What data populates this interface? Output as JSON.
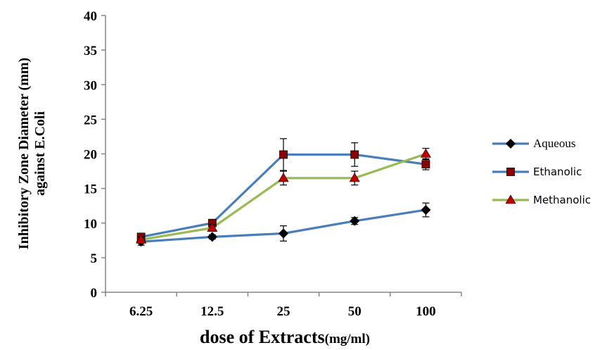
{
  "chart_data": {
    "type": "line",
    "categories": [
      "6.25",
      "12.5",
      "25",
      "50",
      "100"
    ],
    "ylim": [
      0,
      40
    ],
    "yticks": [
      0,
      5,
      10,
      15,
      20,
      25,
      30,
      35,
      40
    ],
    "ylabel_line1": "Inhibitory Zone Diameter (mm)",
    "ylabel_line2": "against E.Coli",
    "xlabel_main": "dose of Extracts",
    "xlabel_unit": "(mg/ml)",
    "grid": false,
    "legend_position": "right",
    "series": [
      {
        "name": "Aqueous",
        "values": [
          7.3,
          8.0,
          8.5,
          10.3,
          11.9
        ],
        "errors": [
          0.5,
          0.3,
          1.1,
          0.5,
          1.0
        ],
        "color": "#4a7ebb",
        "marker": "diamond",
        "marker_color": "#000000"
      },
      {
        "name": "Ethanolic",
        "values": [
          8.0,
          10.0,
          19.9,
          19.9,
          18.5
        ],
        "errors": [
          0.3,
          0.3,
          2.3,
          1.7,
          0.8
        ],
        "color": "#4a7ebb",
        "marker": "square",
        "marker_color": "#8b0000"
      },
      {
        "name": "Methanolic",
        "values": [
          7.6,
          9.3,
          16.5,
          16.5,
          20.0
        ],
        "errors": [
          0.4,
          0.5,
          1.0,
          1.0,
          0.8
        ],
        "color": "#98b954",
        "marker": "triangle",
        "marker_color": "#c00000"
      }
    ]
  }
}
